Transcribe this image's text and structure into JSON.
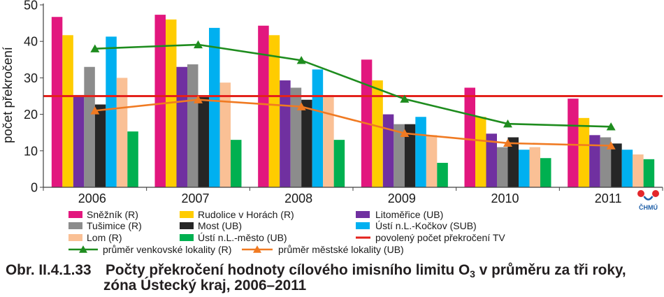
{
  "chart_data": {
    "type": "bar",
    "categories": [
      "2006",
      "2007",
      "2008",
      "2009",
      "2010",
      "2011"
    ],
    "ylabel": "počet překročení",
    "ylim": [
      0,
      50
    ],
    "yticks": [
      0,
      10,
      20,
      30,
      40,
      50
    ],
    "grid": false,
    "legend_position": "bottom",
    "series": [
      {
        "name": "Sněžník (R)",
        "type": "bar",
        "color": "#e2177e",
        "values": [
          46.7,
          47.3,
          44.3,
          35.0,
          27.3,
          24.3
        ]
      },
      {
        "name": "Rudolice v Horách (R)",
        "type": "bar",
        "color": "#ffcc00",
        "values": [
          41.7,
          46.0,
          41.7,
          29.3,
          19.3,
          19.0
        ]
      },
      {
        "name": "Litoměřice (UB)",
        "type": "bar",
        "color": "#7030a0",
        "values": [
          25.3,
          33.0,
          29.3,
          20.0,
          14.7,
          14.3
        ]
      },
      {
        "name": "Tušimice (R)",
        "type": "bar",
        "color": "#8c8c8c",
        "values": [
          33.0,
          33.7,
          27.3,
          17.3,
          11.0,
          13.7
        ]
      },
      {
        "name": "Most (UB)",
        "type": "bar",
        "color": "#262626",
        "values": [
          22.7,
          24.7,
          24.0,
          17.3,
          13.7,
          12.0
        ]
      },
      {
        "name": "Ústí n.L.-Kočkov (SUB)",
        "type": "bar",
        "color": "#00b0f0",
        "values": [
          41.3,
          43.7,
          32.3,
          19.3,
          10.3,
          10.3
        ]
      },
      {
        "name": "Lom (R)",
        "type": "bar",
        "color": "#fac095",
        "values": [
          30.0,
          28.7,
          25.3,
          14.3,
          11.0,
          9.0
        ]
      },
      {
        "name": "Ústí n.L.-město (UB)",
        "type": "bar",
        "color": "#00b050",
        "values": [
          15.3,
          13.0,
          13.0,
          6.7,
          8.0,
          7.7
        ]
      },
      {
        "name": "průměr venkovské lokality (R)",
        "type": "line",
        "marker": "triangle",
        "color": "#1e8c1e",
        "values": [
          38.0,
          39.1,
          34.8,
          24.2,
          17.4,
          16.6
        ]
      },
      {
        "name": "průměr městské lokality (UB)",
        "type": "line",
        "marker": "triangle",
        "color": "#f07a22",
        "values": [
          21.0,
          24.0,
          22.1,
          14.8,
          12.1,
          11.4
        ]
      }
    ],
    "reference_lines": [
      {
        "name": "povolený počet překročení TV",
        "value": 25,
        "color": "#e3221c"
      }
    ]
  },
  "caption": {
    "label": "Obr. II.4.1.33",
    "line1_main": "Počty překročení hodnoty cílového imisního limitu O",
    "line1_sub": "3",
    "line1_end": " v průměru za tři roky,",
    "line2": "zóna Ústecký kraj, 2006–2011"
  },
  "logo": {
    "text": "ČHMÚ",
    "icon": "chmu-logo"
  }
}
